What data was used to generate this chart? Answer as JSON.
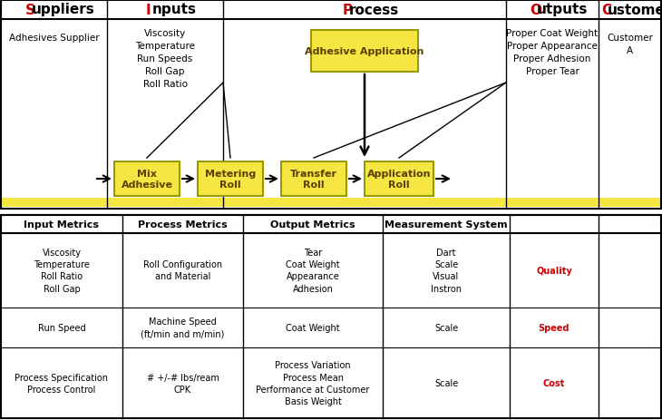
{
  "fig_width": 7.3,
  "fig_height": 4.64,
  "dpi": 100,
  "background": "#ffffff",
  "yellow_box": "#f5e642",
  "yellow_bar": "#f5e642",
  "header_red": "#cc0000",
  "header_black": "#000000",
  "sipoc_headers": [
    "Suppliers",
    "Inputs",
    "Process",
    "Outputs",
    "Customers"
  ],
  "sipoc_suppliers_text": "Adhesives Supplier",
  "sipoc_inputs_text": "Viscosity\nTemperature\nRun Speeds\nRoll Gap\nRoll Ratio",
  "sipoc_outputs_text": "Proper Coat Weight\nProper Appearance\nProper Adhesion\nProper Tear",
  "sipoc_customers_text": "Customer\nA",
  "process_box1": "Adhesive Application",
  "process_box2": "Mix\nAdhesive",
  "process_box3": "Metering\nRoll",
  "process_box4": "Transfer\nRoll",
  "process_box5": "Application\nRoll",
  "metrics_headers": [
    "Input Metrics",
    "Process Metrics",
    "Output Metrics",
    "Measurement System",
    ""
  ],
  "metrics_row1_col1": "Viscosity\nTemperature\nRoll Ratio\nRoll Gap",
  "metrics_row1_col2": "Roll Configuration\nand Material",
  "metrics_row1_col3": "Tear\nCoat Weight\nAppearance\nAdhesion",
  "metrics_row1_col4": "Dart\nScale\nVisual\nInstron",
  "metrics_row1_col5": "Quality",
  "metrics_row2_col1": "Run Speed",
  "metrics_row2_col2": "Machine Speed\n(ft/min and m/min)",
  "metrics_row2_col3": "Coat Weight",
  "metrics_row2_col4": "Scale",
  "metrics_row2_col5": "Speed",
  "metrics_row3_col1": "Process Specification\nProcess Control",
  "metrics_row3_col2": "# +/-# lbs/ream\nCPK",
  "metrics_row3_col3": "Process Variation\nProcess Mean\nPerformance at Customer\nBasis Weight",
  "metrics_row3_col4": "Scale",
  "metrics_row3_col5": "Cost"
}
